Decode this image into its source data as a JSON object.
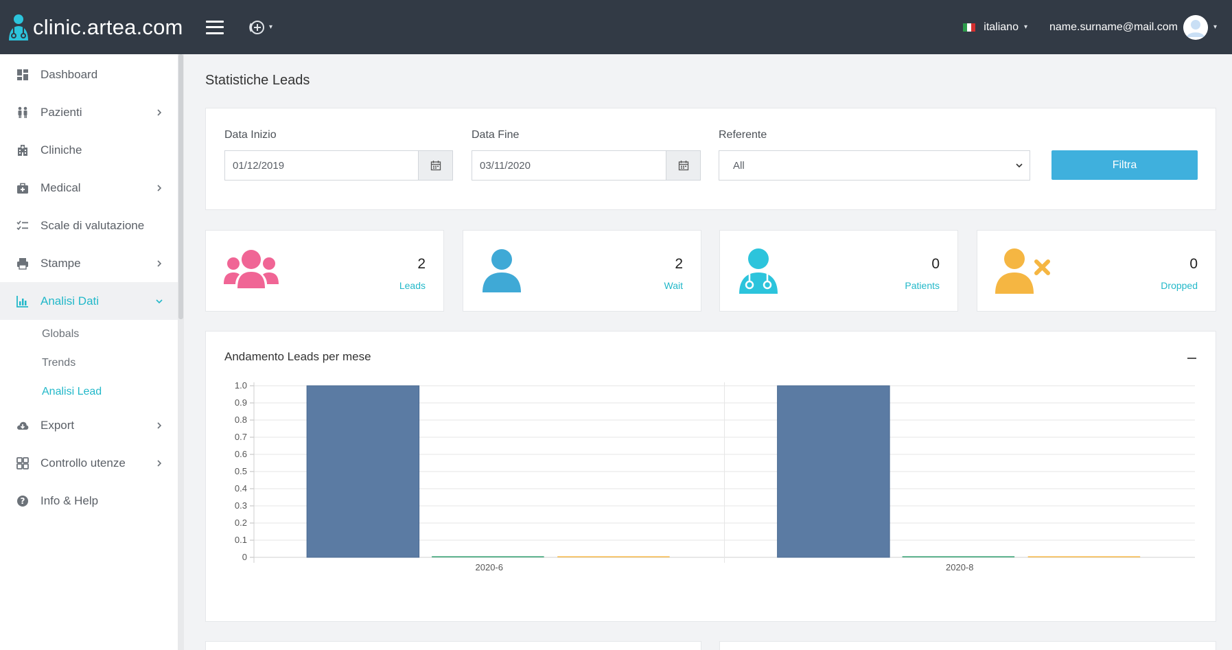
{
  "brand": {
    "name": "clinic.artea.com"
  },
  "topbar": {
    "language": "italiano",
    "user_email": "name.surname@mail.com"
  },
  "sidebar": {
    "items": [
      {
        "label": "Dashboard",
        "icon": "dashboard-icon",
        "has_children": false
      },
      {
        "label": "Pazienti",
        "icon": "patients-icon",
        "has_children": true
      },
      {
        "label": "Cliniche",
        "icon": "hospital-icon",
        "has_children": false
      },
      {
        "label": "Medical",
        "icon": "medical-kit-icon",
        "has_children": true
      },
      {
        "label": "Scale di valutazione",
        "icon": "checklist-icon",
        "has_children": false
      },
      {
        "label": "Stampe",
        "icon": "print-icon",
        "has_children": true
      },
      {
        "label": "Analisi Dati",
        "icon": "bar-chart-icon",
        "has_children": true,
        "active": true
      },
      {
        "label": "Export",
        "icon": "cloud-download-icon",
        "has_children": true
      },
      {
        "label": "Controllo utenze",
        "icon": "grid-icon",
        "has_children": true
      },
      {
        "label": "Info & Help",
        "icon": "question-icon",
        "has_children": false
      }
    ],
    "sub_items": [
      {
        "label": "Globals"
      },
      {
        "label": "Trends"
      },
      {
        "label": "Analisi Lead",
        "active": true
      }
    ]
  },
  "page": {
    "title": "Statistiche Leads"
  },
  "filters": {
    "start_label": "Data Inizio",
    "start_value": "01/12/2019",
    "end_label": "Data Fine",
    "end_value": "03/11/2020",
    "referent_label": "Referente",
    "referent_value": "All",
    "submit_label": "Filtra"
  },
  "stats": [
    {
      "value": "2",
      "label": "Leads",
      "color": "#f06595",
      "icon": "group-icon"
    },
    {
      "value": "2",
      "label": "Wait",
      "color": "#3fa9d6",
      "icon": "user-icon"
    },
    {
      "value": "0",
      "label": "Patients",
      "color": "#2cc4dc",
      "icon": "doctor-icon"
    },
    {
      "value": "0",
      "label": "Dropped",
      "color": "#f5b642",
      "icon": "user-x-icon"
    }
  ],
  "colors": {
    "accent": "#22b8c9",
    "topbar": "#323a45",
    "button": "#3fb0dd",
    "bar_leads": "#5b7ba3",
    "bar_patients": "#2e9e6e",
    "bar_dropped": "#f5b642"
  },
  "chart": {
    "title": "Andamento Leads per mese"
  },
  "chart_data": {
    "type": "bar",
    "categories": [
      "2020-6",
      "2020-8"
    ],
    "series": [
      {
        "values": [
          1,
          1
        ],
        "color": "#5b7ba3"
      },
      {
        "values": [
          0,
          0
        ],
        "color": "#2e9e6e"
      },
      {
        "values": [
          0,
          0
        ],
        "color": "#f5b642"
      }
    ],
    "yticks": [
      "0",
      "0.1",
      "0.2",
      "0.3",
      "0.4",
      "0.5",
      "0.6",
      "0.7",
      "0.8",
      "0.9",
      "1.0"
    ],
    "ylim": [
      0,
      1
    ],
    "grid": true,
    "legend": "none"
  }
}
